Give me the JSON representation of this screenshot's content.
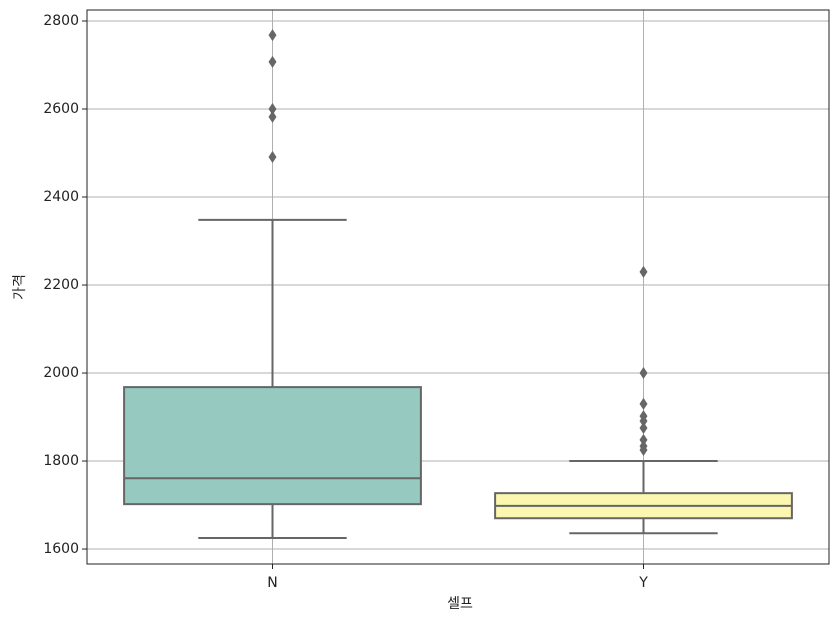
{
  "chart_data": {
    "type": "box",
    "x_label": "셀프",
    "y_label": "가격",
    "categories": [
      "N",
      "Y"
    ],
    "boxes": [
      {
        "color": "#96c9c0",
        "whislo": 1625,
        "q1": 1702,
        "median": 1761,
        "q3": 1968,
        "whishi": 2348,
        "fliers": [
          2768,
          2707,
          2600,
          2582,
          2491
        ]
      },
      {
        "color": "#fbf6b0",
        "whislo": 1636,
        "q1": 1670,
        "median": 1698,
        "q3": 1727,
        "whishi": 1800,
        "fliers": [
          2230,
          2000,
          1930,
          1902,
          1891,
          1875,
          1848,
          1834,
          1825
        ]
      }
    ],
    "ylim": [
      1566,
      2825
    ],
    "yticks": [
      1600,
      1800,
      2000,
      2200,
      2400,
      2600,
      2800
    ],
    "grid": true
  }
}
